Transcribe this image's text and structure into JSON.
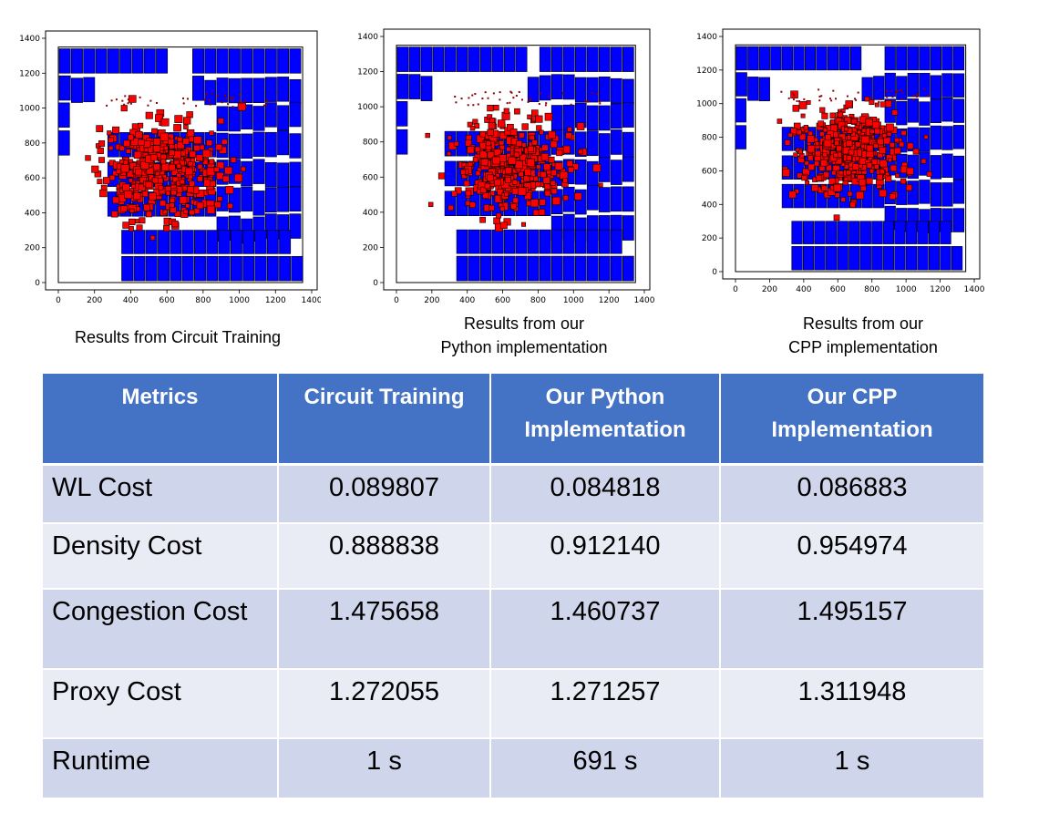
{
  "chart_data": [
    {
      "type": "scatter",
      "xlim": [
        0,
        1400
      ],
      "ylim": [
        0,
        1400
      ],
      "xticks": [
        "0",
        "200",
        "400",
        "600",
        "800",
        "1000",
        "1200",
        "1400"
      ],
      "yticks": [
        "0",
        "200",
        "400",
        "600",
        "800",
        "1000",
        "1200",
        "1400"
      ],
      "caption_lines": [
        "Results from Circuit Training"
      ],
      "macro_color": "#0000ff",
      "cell_color": "#ff0000",
      "canvas_extent": [
        1350,
        1350
      ],
      "cell_cluster": {
        "center": [
          560,
          620
        ],
        "spread": [
          210,
          190
        ]
      }
    },
    {
      "type": "scatter",
      "xlim": [
        0,
        1400
      ],
      "ylim": [
        0,
        1400
      ],
      "xticks": [
        "0",
        "200",
        "400",
        "600",
        "800",
        "1000",
        "1200",
        "1400"
      ],
      "yticks": [
        "0",
        "200",
        "400",
        "600",
        "800",
        "1000",
        "1200",
        "1400"
      ],
      "caption_lines": [
        "Results from our",
        "Python implementation"
      ],
      "macro_color": "#0000ff",
      "cell_color": "#ff0000",
      "canvas_extent": [
        1350,
        1350
      ],
      "cell_cluster": {
        "center": [
          620,
          650
        ],
        "spread": [
          210,
          180
        ]
      }
    },
    {
      "type": "scatter",
      "xlim": [
        0,
        1400
      ],
      "ylim": [
        0,
        1400
      ],
      "xticks": [
        "0",
        "200",
        "400",
        "600",
        "800",
        "1000",
        "1200",
        "1400"
      ],
      "yticks": [
        "0",
        "200",
        "400",
        "600",
        "800",
        "1000",
        "1200",
        "1400"
      ],
      "caption_lines": [
        "Results from our",
        "CPP implementation"
      ],
      "macro_color": "#0000ff",
      "cell_color": "#ff0000",
      "canvas_extent": [
        1350,
        1350
      ],
      "cell_cluster": {
        "center": [
          660,
          680
        ],
        "spread": [
          200,
          170
        ]
      }
    }
  ],
  "table": {
    "headers": [
      [
        "Metrics"
      ],
      [
        "Circuit Training"
      ],
      [
        "Our Python",
        "Implementation"
      ],
      [
        "Our CPP",
        "Implementation"
      ]
    ],
    "rows": [
      {
        "label": "WL Cost",
        "values": [
          "0.089807",
          "0.084818",
          "0.086883"
        ]
      },
      {
        "label": "Density Cost",
        "values": [
          "0.888838",
          "0.912140",
          "0.954974"
        ]
      },
      {
        "label": "Congestion Cost",
        "values": [
          "1.475658",
          "1.460737",
          "1.495157"
        ]
      },
      {
        "label": "Proxy Cost",
        "values": [
          "1.272055",
          "1.271257",
          "1.311948"
        ]
      },
      {
        "label": "Runtime",
        "values": [
          "1 s",
          "691 s",
          "1 s"
        ]
      }
    ],
    "header_color": "#4472c4",
    "row_dark_color": "#cfd5ea",
    "row_light_color": "#e9ebf5"
  }
}
